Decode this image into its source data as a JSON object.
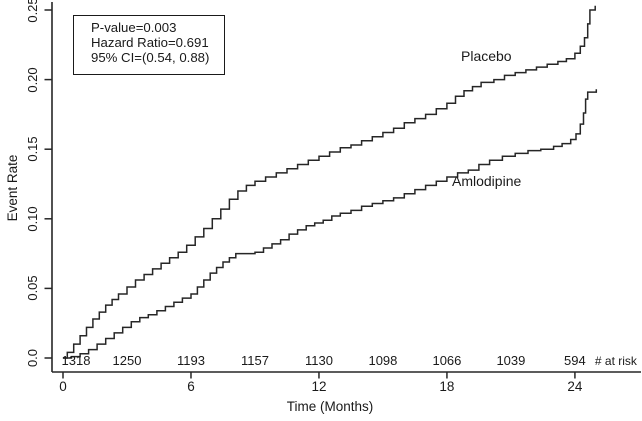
{
  "figure": {
    "background": "#ffffff",
    "line_color": "#262626",
    "text_color": "#1a1a1a"
  },
  "annotation_box": {
    "lines": [
      "P-value=0.003",
      "Hazard Ratio=0.691",
      "95% CI=(0.54, 0.88)"
    ]
  },
  "chart_data": {
    "type": "line",
    "subtype": "kaplan-meier-step",
    "title": "",
    "xlabel": "Time (Months)",
    "ylabel": "Event Rate",
    "xlim": [
      0,
      27.1
    ],
    "ylim": [
      0,
      0.256
    ],
    "grid": false,
    "legend_position": "inline-curve-labels",
    "x_ticks": [
      0,
      6,
      12,
      18,
      24
    ],
    "x_tick_labels": [
      "0",
      "6",
      "12",
      "18",
      "24"
    ],
    "y_ticks": [
      0,
      0.05,
      0.1,
      0.15,
      0.2,
      0.25
    ],
    "y_tick_labels": [
      "0.0",
      "0.05",
      "0.10",
      "0.15",
      "0.20",
      "0.25"
    ],
    "series": [
      {
        "name": "Placebo",
        "points": [
          [
            0,
            0
          ],
          [
            0.2,
            0.004
          ],
          [
            0.5,
            0.01
          ],
          [
            0.8,
            0.016
          ],
          [
            1.1,
            0.022
          ],
          [
            1.4,
            0.028
          ],
          [
            1.7,
            0.033
          ],
          [
            2.0,
            0.038
          ],
          [
            2.3,
            0.042
          ],
          [
            2.6,
            0.046
          ],
          [
            3.0,
            0.051
          ],
          [
            3.4,
            0.056
          ],
          [
            3.8,
            0.06
          ],
          [
            4.2,
            0.064
          ],
          [
            4.6,
            0.068
          ],
          [
            5.0,
            0.072
          ],
          [
            5.4,
            0.076
          ],
          [
            5.8,
            0.081
          ],
          [
            6.2,
            0.087
          ],
          [
            6.6,
            0.093
          ],
          [
            7.0,
            0.1
          ],
          [
            7.4,
            0.107
          ],
          [
            7.8,
            0.114
          ],
          [
            8.2,
            0.12
          ],
          [
            8.6,
            0.124
          ],
          [
            9.0,
            0.127
          ],
          [
            9.5,
            0.13
          ],
          [
            10.0,
            0.133
          ],
          [
            10.5,
            0.136
          ],
          [
            11.0,
            0.139
          ],
          [
            11.5,
            0.142
          ],
          [
            12.0,
            0.145
          ],
          [
            12.5,
            0.148
          ],
          [
            13.0,
            0.151
          ],
          [
            13.5,
            0.153
          ],
          [
            14.0,
            0.156
          ],
          [
            14.5,
            0.159
          ],
          [
            15.0,
            0.162
          ],
          [
            15.5,
            0.165
          ],
          [
            16.0,
            0.169
          ],
          [
            16.5,
            0.172
          ],
          [
            17.0,
            0.175
          ],
          [
            17.5,
            0.179
          ],
          [
            18.0,
            0.183
          ],
          [
            18.4,
            0.188
          ],
          [
            18.8,
            0.192
          ],
          [
            19.2,
            0.195
          ],
          [
            19.6,
            0.198
          ],
          [
            20.2,
            0.2
          ],
          [
            20.7,
            0.203
          ],
          [
            21.2,
            0.205
          ],
          [
            21.7,
            0.207
          ],
          [
            22.2,
            0.209
          ],
          [
            22.7,
            0.211
          ],
          [
            23.2,
            0.213
          ],
          [
            23.6,
            0.215
          ],
          [
            24.0,
            0.219
          ],
          [
            24.25,
            0.224
          ],
          [
            24.45,
            0.23
          ],
          [
            24.6,
            0.24
          ],
          [
            24.7,
            0.25
          ],
          [
            24.95,
            0.253
          ]
        ]
      },
      {
        "name": "Amlodipine",
        "points": [
          [
            0,
            0
          ],
          [
            0.4,
            0.001
          ],
          [
            0.8,
            0.003
          ],
          [
            1.2,
            0.006
          ],
          [
            1.6,
            0.01
          ],
          [
            2.0,
            0.014
          ],
          [
            2.4,
            0.018
          ],
          [
            2.8,
            0.022
          ],
          [
            3.2,
            0.026
          ],
          [
            3.6,
            0.029
          ],
          [
            4.0,
            0.031
          ],
          [
            4.4,
            0.034
          ],
          [
            4.8,
            0.037
          ],
          [
            5.2,
            0.04
          ],
          [
            5.6,
            0.043
          ],
          [
            6.0,
            0.046
          ],
          [
            6.3,
            0.051
          ],
          [
            6.6,
            0.056
          ],
          [
            6.9,
            0.061
          ],
          [
            7.2,
            0.065
          ],
          [
            7.5,
            0.069
          ],
          [
            7.8,
            0.072
          ],
          [
            8.1,
            0.075
          ],
          [
            9.0,
            0.076
          ],
          [
            9.4,
            0.079
          ],
          [
            9.8,
            0.082
          ],
          [
            10.2,
            0.085
          ],
          [
            10.6,
            0.089
          ],
          [
            11.0,
            0.092
          ],
          [
            11.4,
            0.095
          ],
          [
            11.8,
            0.097
          ],
          [
            12.2,
            0.099
          ],
          [
            12.6,
            0.102
          ],
          [
            13.0,
            0.104
          ],
          [
            13.5,
            0.106
          ],
          [
            14.0,
            0.109
          ],
          [
            14.5,
            0.111
          ],
          [
            15.0,
            0.113
          ],
          [
            15.5,
            0.115
          ],
          [
            16.0,
            0.118
          ],
          [
            16.5,
            0.121
          ],
          [
            17.0,
            0.124
          ],
          [
            17.5,
            0.127
          ],
          [
            18.0,
            0.13
          ],
          [
            18.5,
            0.133
          ],
          [
            19.0,
            0.135
          ],
          [
            19.5,
            0.139
          ],
          [
            20.0,
            0.142
          ],
          [
            20.6,
            0.145
          ],
          [
            21.2,
            0.147
          ],
          [
            21.8,
            0.149
          ],
          [
            22.4,
            0.15
          ],
          [
            23.0,
            0.152
          ],
          [
            23.4,
            0.154
          ],
          [
            23.8,
            0.157
          ],
          [
            24.05,
            0.161
          ],
          [
            24.25,
            0.168
          ],
          [
            24.4,
            0.176
          ],
          [
            24.5,
            0.186
          ],
          [
            24.6,
            0.191
          ],
          [
            24.95,
            0.191
          ],
          [
            25.0,
            0.193
          ]
        ]
      }
    ],
    "at_risk": {
      "caption": "# at risk",
      "times": [
        0,
        3,
        6,
        9,
        12,
        15,
        18,
        21,
        24
      ],
      "counts": [
        1318,
        1250,
        1193,
        1157,
        1130,
        1098,
        1066,
        1039,
        594
      ]
    }
  }
}
